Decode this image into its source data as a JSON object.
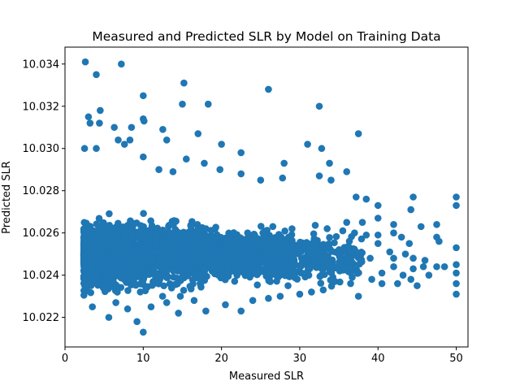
{
  "chart_data": {
    "type": "scatter",
    "title": "Measured and Predicted SLR by Model on Training Data",
    "xlabel": "Measured SLR",
    "ylabel": "Predicted SLR",
    "xlim": [
      0,
      51.5
    ],
    "ylim": [
      10.0206,
      10.0348
    ],
    "xticks": [
      0,
      10,
      20,
      30,
      40,
      50
    ],
    "xtick_labels": [
      "0",
      "10",
      "20",
      "30",
      "40",
      "50"
    ],
    "yticks": [
      10.022,
      10.024,
      10.026,
      10.028,
      10.03,
      10.032,
      10.034
    ],
    "ytick_labels": [
      "10.022",
      "10.024",
      "10.026",
      "10.028",
      "10.030",
      "10.032",
      "10.034"
    ],
    "grid": false,
    "legend": "none",
    "marker_color": "#1f77b4",
    "series": [
      {
        "points": [
          [
            2.6,
            10.0341
          ],
          [
            7.2,
            10.034
          ],
          [
            4.0,
            10.0335
          ],
          [
            15.2,
            10.0331
          ],
          [
            26.0,
            10.0328
          ],
          [
            10.0,
            10.0325
          ],
          [
            15.0,
            10.0321
          ],
          [
            18.3,
            10.0321
          ],
          [
            32.5,
            10.032
          ],
          [
            4.5,
            10.0318
          ],
          [
            3.0,
            10.0315
          ],
          [
            3.2,
            10.0312
          ],
          [
            4.4,
            10.0312
          ],
          [
            10.0,
            10.0314
          ],
          [
            10.1,
            10.0313
          ],
          [
            6.3,
            10.031
          ],
          [
            8.5,
            10.031
          ],
          [
            12.5,
            10.0309
          ],
          [
            17.0,
            10.0307
          ],
          [
            37.5,
            10.0307
          ],
          [
            6.8,
            10.0304
          ],
          [
            2.5,
            10.03
          ],
          [
            4.0,
            10.03
          ],
          [
            7.6,
            10.0302
          ],
          [
            8.3,
            10.0304
          ],
          [
            13.0,
            10.0304
          ],
          [
            20.0,
            10.0302
          ],
          [
            31.0,
            10.0302
          ],
          [
            32.8,
            10.03
          ],
          [
            22.5,
            10.0298
          ],
          [
            10.0,
            10.0296
          ],
          [
            15.5,
            10.0295
          ],
          [
            17.8,
            10.0293
          ],
          [
            28.0,
            10.0293
          ],
          [
            33.8,
            10.0293
          ],
          [
            36.0,
            10.0289
          ],
          [
            12.0,
            10.029
          ],
          [
            13.8,
            10.0289
          ],
          [
            19.8,
            10.029
          ],
          [
            27.8,
            10.0286
          ],
          [
            32.5,
            10.0287
          ],
          [
            22.5,
            10.0288
          ],
          [
            25.0,
            10.0285
          ],
          [
            34.0,
            10.0285
          ],
          [
            37.2,
            10.0277
          ],
          [
            38.5,
            10.0276
          ],
          [
            44.5,
            10.0277
          ],
          [
            50.0,
            10.0277
          ],
          [
            40.0,
            10.0273
          ],
          [
            44.2,
            10.0271
          ],
          [
            50.0,
            10.0273
          ],
          [
            40.0,
            10.0267
          ],
          [
            42.0,
            10.0264
          ],
          [
            47.5,
            10.0264
          ],
          [
            45.5,
            10.0263
          ],
          [
            36.0,
            10.0265
          ],
          [
            38.0,
            10.0265
          ],
          [
            33.5,
            10.0262
          ],
          [
            35.5,
            10.0261
          ],
          [
            37.0,
            10.026
          ],
          [
            38.5,
            10.0259
          ],
          [
            42.0,
            10.026
          ],
          [
            47.5,
            10.0258
          ],
          [
            40.0,
            10.0259
          ],
          [
            43.0,
            10.0258
          ],
          [
            40.0,
            10.0255
          ],
          [
            44.0,
            10.0255
          ],
          [
            47.8,
            10.0256
          ],
          [
            50.0,
            10.0253
          ],
          [
            41.5,
            10.0251
          ],
          [
            43.5,
            10.025
          ],
          [
            39.0,
            10.0248
          ],
          [
            42.0,
            10.0248
          ],
          [
            44.5,
            10.0248
          ],
          [
            46.0,
            10.0247
          ],
          [
            48.5,
            10.0244
          ],
          [
            50.0,
            10.0245
          ],
          [
            42.0,
            10.0244
          ],
          [
            44.5,
            10.0243
          ],
          [
            45.8,
            10.0244
          ],
          [
            47.5,
            10.0244
          ],
          [
            40.5,
            10.0241
          ],
          [
            43.2,
            10.024
          ],
          [
            46.5,
            10.024
          ],
          [
            50.0,
            10.0241
          ],
          [
            39.2,
            10.0238
          ],
          [
            44.2,
            10.0238
          ],
          [
            50.0,
            10.0236
          ],
          [
            40.5,
            10.0236
          ],
          [
            42.5,
            10.0236
          ],
          [
            45.0,
            10.0235
          ],
          [
            50.0,
            10.0231
          ],
          [
            37.5,
            10.023
          ],
          [
            36.5,
            10.0236
          ],
          [
            34.5,
            10.0237
          ],
          [
            27.5,
            10.023
          ],
          [
            30.0,
            10.0231
          ],
          [
            28.5,
            10.0235
          ],
          [
            22.5,
            10.0223
          ],
          [
            18.0,
            10.0223
          ],
          [
            14.5,
            10.0222
          ],
          [
            11.0,
            10.0225
          ],
          [
            8.0,
            10.0224
          ],
          [
            5.6,
            10.022
          ],
          [
            9.2,
            10.0218
          ],
          [
            10.0,
            10.0213
          ],
          [
            3.5,
            10.0225
          ],
          [
            6.5,
            10.0227
          ],
          [
            13.0,
            10.0227
          ],
          [
            16.5,
            10.0228
          ],
          [
            20.5,
            10.0226
          ],
          [
            24.0,
            10.0228
          ],
          [
            26.0,
            10.0229
          ],
          [
            31.5,
            10.0232
          ],
          [
            33.0,
            10.0233
          ]
        ]
      }
    ]
  }
}
